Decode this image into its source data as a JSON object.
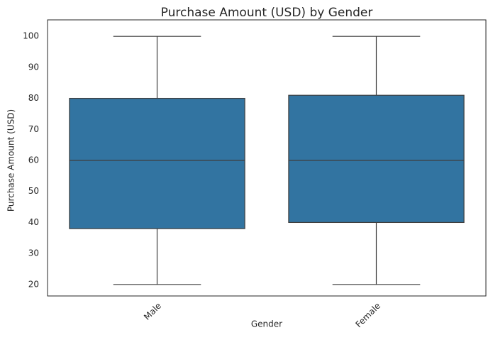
{
  "chart_data": {
    "type": "box",
    "title": "Purchase Amount (USD) by Gender",
    "x_label": "Gender",
    "y_label": "Purchase Amount (USD)",
    "categories": [
      "Male",
      "Female"
    ],
    "boxes": [
      {
        "min": 20,
        "q1": 38,
        "median": 60,
        "q3": 80,
        "max": 100
      },
      {
        "min": 20,
        "q1": 40,
        "median": 60,
        "q3": 81,
        "max": 100
      }
    ],
    "color": "#3274a1",
    "ylim": [
      16.3,
      105.3
    ],
    "yticks": [
      20,
      30,
      40,
      50,
      60,
      70,
      80,
      90,
      100
    ],
    "grid": false
  }
}
